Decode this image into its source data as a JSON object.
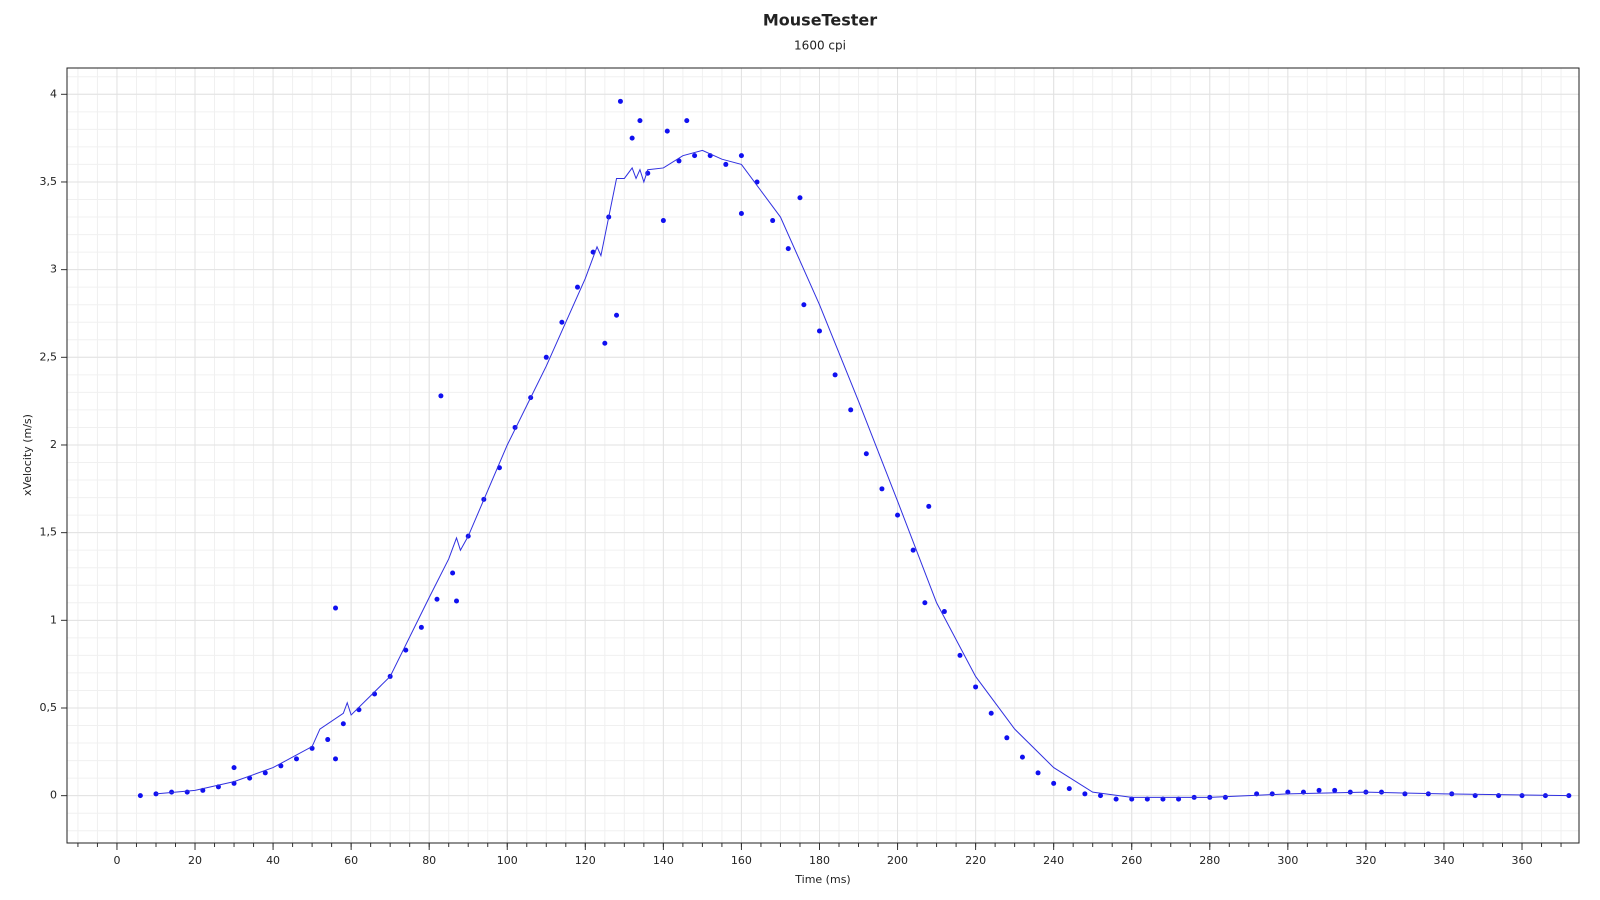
{
  "chart_data": {
    "type": "scatter",
    "title": "MouseTester",
    "subtitle": "1600 cpi",
    "xlabel": "Time (ms)",
    "ylabel": "xVelocity (m/s)",
    "xlim": [
      -12.8,
      374.6
    ],
    "ylim": [
      -0.27,
      4.15
    ],
    "xticks": [
      0,
      20,
      40,
      60,
      80,
      100,
      120,
      140,
      160,
      180,
      200,
      220,
      240,
      260,
      280,
      300,
      320,
      340,
      360
    ],
    "yticks": [
      0,
      {
        "value": 0.5,
        "label": "0,5"
      },
      1,
      {
        "value": 1.5,
        "label": "1,5"
      },
      2,
      {
        "value": 2.5,
        "label": "2,5"
      },
      3,
      {
        "value": 3.5,
        "label": "3,5"
      },
      4
    ],
    "grid": true,
    "series": [
      {
        "style": "points",
        "color": "#1010f0",
        "x": [
          6,
          10,
          14,
          18,
          22,
          26,
          30,
          30,
          34,
          38,
          42,
          46,
          50,
          54,
          56,
          56,
          58,
          62,
          66,
          70,
          74,
          78,
          82,
          83,
          86,
          87,
          90,
          94,
          98,
          102,
          106,
          110,
          114,
          118,
          122,
          125,
          126,
          128,
          129,
          132,
          134,
          136,
          140,
          141,
          144,
          146,
          148,
          152,
          156,
          160,
          160,
          164,
          168,
          172,
          175,
          176,
          180,
          184,
          188,
          192,
          196,
          200,
          204,
          207,
          208,
          212,
          216,
          220,
          224,
          228,
          232,
          236,
          240,
          244,
          248,
          252,
          256,
          260,
          264,
          268,
          272,
          276,
          280,
          284,
          292,
          296,
          300,
          304,
          308,
          312,
          316,
          320,
          324,
          330,
          336,
          342,
          348,
          354,
          360,
          366,
          372
        ],
        "values": [
          0,
          0.01,
          0.02,
          0.02,
          0.03,
          0.05,
          0.07,
          0.16,
          0.1,
          0.13,
          0.17,
          0.21,
          0.27,
          0.32,
          1.07,
          0.21,
          0.41,
          0.49,
          0.58,
          0.68,
          0.83,
          0.96,
          1.12,
          2.28,
          1.27,
          1.11,
          1.48,
          1.69,
          1.87,
          2.1,
          2.27,
          2.5,
          2.7,
          2.9,
          3.1,
          2.58,
          3.3,
          2.74,
          3.96,
          3.75,
          3.85,
          3.55,
          3.28,
          3.79,
          3.62,
          3.85,
          3.65,
          3.65,
          3.6,
          3.65,
          3.32,
          3.5,
          3.28,
          3.12,
          3.41,
          2.8,
          2.65,
          2.4,
          2.2,
          1.95,
          1.75,
          1.6,
          1.4,
          1.1,
          1.65,
          1.05,
          0.8,
          0.62,
          0.47,
          0.33,
          0.22,
          0.13,
          0.07,
          0.04,
          0.01,
          0,
          -0.02,
          -0.02,
          -0.02,
          -0.02,
          -0.02,
          -0.01,
          -0.01,
          -0.01,
          0.01,
          0.01,
          0.02,
          0.02,
          0.03,
          0.03,
          0.02,
          0.02,
          0.02,
          0.01,
          0.01,
          0.01,
          0,
          0,
          0,
          0,
          0
        ]
      },
      {
        "style": "line",
        "color": "#3030e0",
        "x": [
          10,
          20,
          30,
          40,
          50,
          52,
          58,
          59,
          60,
          70,
          80,
          85,
          87,
          88,
          90,
          100,
          110,
          120,
          123,
          124,
          126,
          128,
          130,
          132,
          133,
          134,
          135,
          136,
          140,
          145,
          150,
          155,
          160,
          165,
          170,
          180,
          190,
          200,
          210,
          220,
          230,
          240,
          250,
          260,
          280,
          300,
          320,
          340,
          372
        ],
        "values": [
          0.01,
          0.03,
          0.08,
          0.16,
          0.28,
          0.38,
          0.47,
          0.53,
          0.46,
          0.68,
          1.13,
          1.35,
          1.47,
          1.4,
          1.48,
          2.0,
          2.45,
          2.95,
          3.13,
          3.08,
          3.3,
          3.52,
          3.52,
          3.58,
          3.52,
          3.57,
          3.5,
          3.57,
          3.58,
          3.65,
          3.68,
          3.63,
          3.6,
          3.45,
          3.3,
          2.8,
          2.25,
          1.68,
          1.1,
          0.68,
          0.38,
          0.16,
          0.02,
          -0.01,
          -0.01,
          0.01,
          0.02,
          0.01,
          0
        ]
      }
    ]
  }
}
